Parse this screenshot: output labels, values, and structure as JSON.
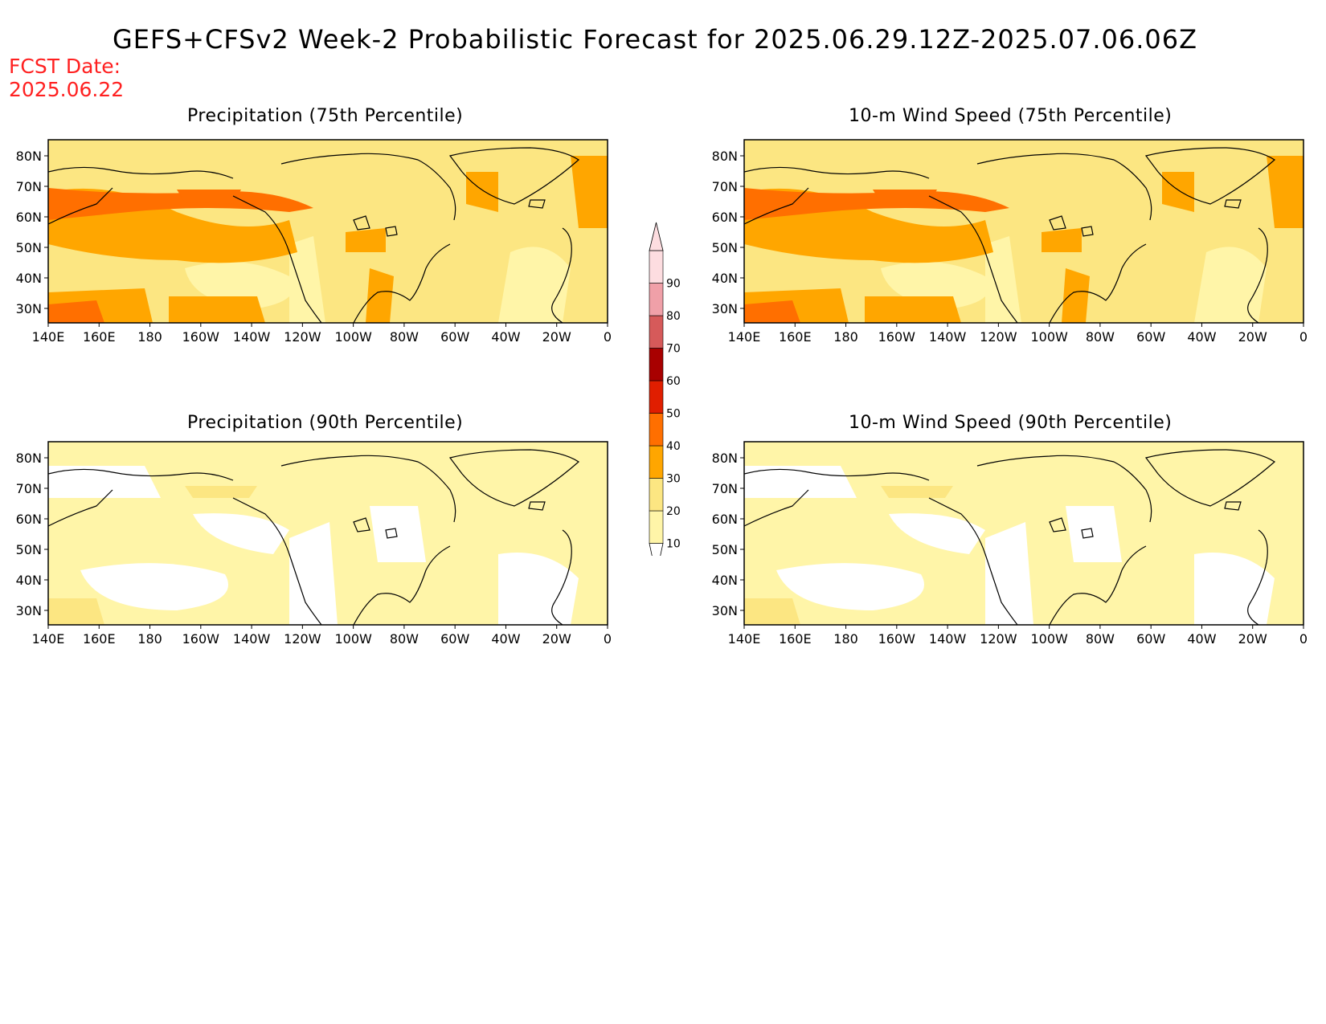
{
  "title": "GEFS+CFSv2 Week-2 Probabilistic Forecast for 2025.06.29.12Z-2025.07.06.06Z",
  "fcst_date_label": "FCST Date:",
  "fcst_date_value": "2025.06.22",
  "colors": {
    "c10": "#fff5a8",
    "c20": "#fce682",
    "c30": "#ffa600",
    "c40": "#ff6f00",
    "c50": "#e01e00",
    "c60": "#a80000",
    "c70": "#d65a5a",
    "c80": "#f0a0a8",
    "c90": "#fddde0",
    "coast": "#000000"
  },
  "colorbar": {
    "levels": [
      "10",
      "20",
      "30",
      "40",
      "50",
      "60",
      "70",
      "80",
      "90"
    ]
  },
  "axes": {
    "lon_labels": [
      "140E",
      "160E",
      "180",
      "160W",
      "140W",
      "120W",
      "100W",
      "80W",
      "60W",
      "40W",
      "20W",
      "0"
    ],
    "lat_labels": [
      "80N",
      "70N",
      "60N",
      "50N",
      "40N",
      "30N"
    ]
  },
  "panels": [
    {
      "id": "precip75",
      "title": "Precipitation (75th Percentile)",
      "level": "high"
    },
    {
      "id": "wind75",
      "title": "10-m Wind Speed (75th Percentile)",
      "level": "high"
    },
    {
      "id": "precip90",
      "title": "Precipitation (90th Percentile)",
      "level": "low"
    },
    {
      "id": "wind90",
      "title": "10-m Wind Speed (90th Percentile)",
      "level": "low"
    }
  ]
}
